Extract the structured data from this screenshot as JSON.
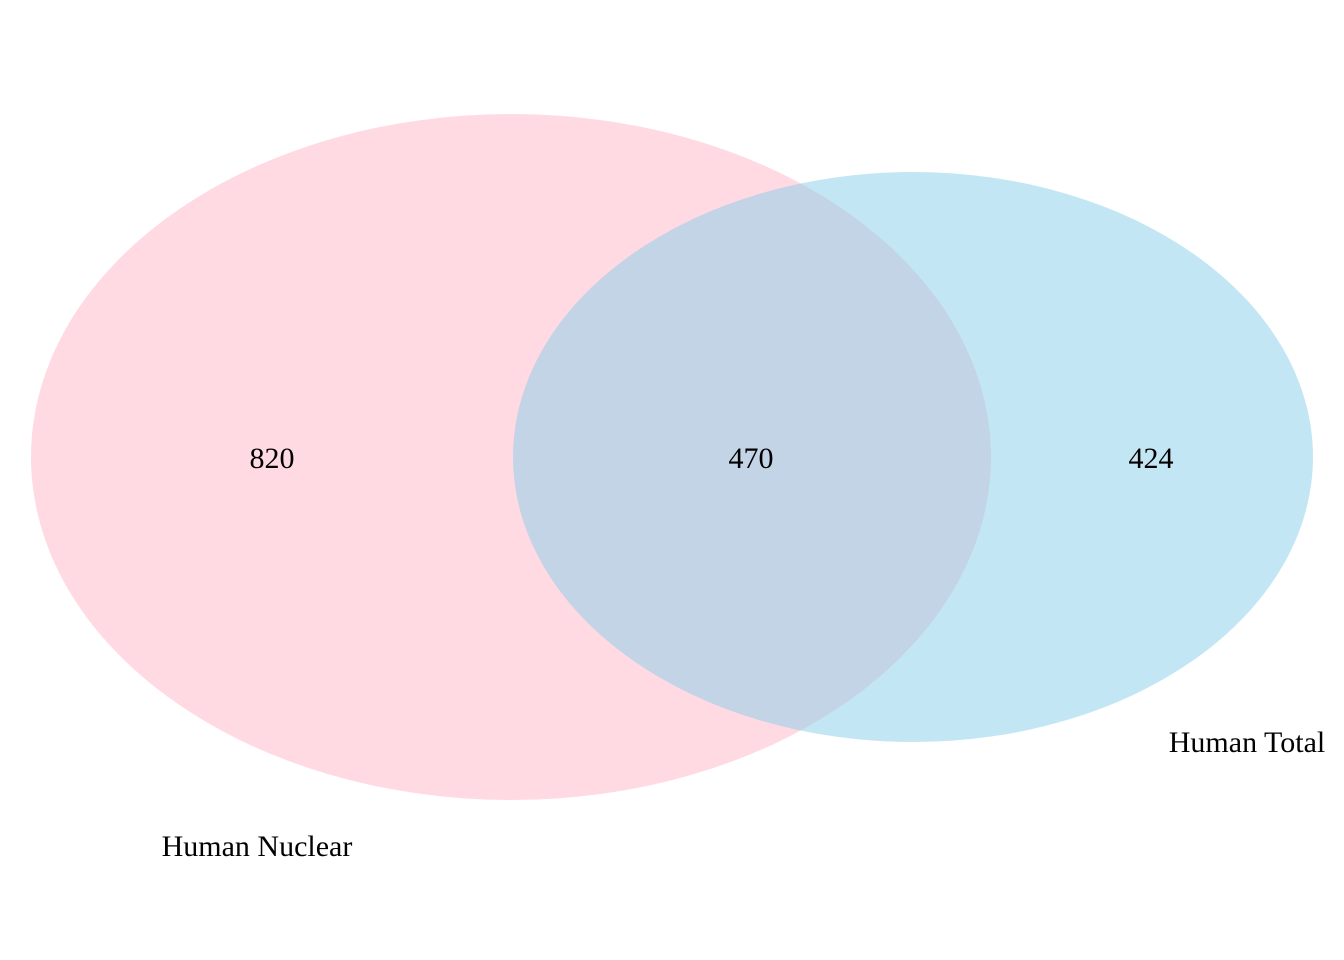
{
  "diagram": {
    "type": "venn",
    "sets": [
      {
        "label": "Human Nuclear",
        "color": "#FFB6C8",
        "only_count": "820"
      },
      {
        "label": "Human Total",
        "color": "#87CEEB",
        "only_count": "424"
      }
    ],
    "intersection_count": "470",
    "fill_opacity": 0.5
  }
}
